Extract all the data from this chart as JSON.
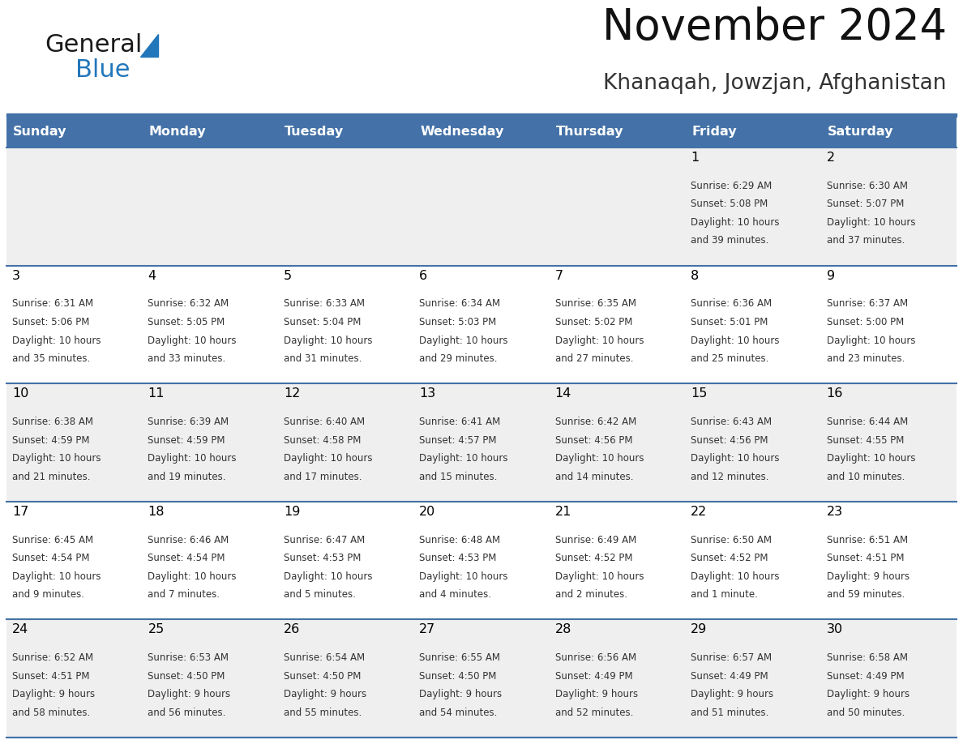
{
  "title": "November 2024",
  "subtitle": "Khanaqah, Jowzjan, Afghanistan",
  "header_bg": "#4472a8",
  "header_text": "#ffffff",
  "day_names": [
    "Sunday",
    "Monday",
    "Tuesday",
    "Wednesday",
    "Thursday",
    "Friday",
    "Saturday"
  ],
  "row_bg_odd": "#efefef",
  "row_bg_even": "#ffffff",
  "cell_border_color": "#4472a8",
  "day_number_color": "#000000",
  "info_text_color": "#333333",
  "logo_color1": "#1a1a1a",
  "logo_color2": "#2277bb",
  "logo_triangle_color": "#2277bb",
  "calendar_data": [
    [
      null,
      null,
      null,
      null,
      null,
      {
        "day": 1,
        "sunrise": "6:29 AM",
        "sunset": "5:08 PM",
        "daylight": "10 hours and 39 minutes."
      },
      {
        "day": 2,
        "sunrise": "6:30 AM",
        "sunset": "5:07 PM",
        "daylight": "10 hours and 37 minutes."
      }
    ],
    [
      {
        "day": 3,
        "sunrise": "6:31 AM",
        "sunset": "5:06 PM",
        "daylight": "10 hours and 35 minutes."
      },
      {
        "day": 4,
        "sunrise": "6:32 AM",
        "sunset": "5:05 PM",
        "daylight": "10 hours and 33 minutes."
      },
      {
        "day": 5,
        "sunrise": "6:33 AM",
        "sunset": "5:04 PM",
        "daylight": "10 hours and 31 minutes."
      },
      {
        "day": 6,
        "sunrise": "6:34 AM",
        "sunset": "5:03 PM",
        "daylight": "10 hours and 29 minutes."
      },
      {
        "day": 7,
        "sunrise": "6:35 AM",
        "sunset": "5:02 PM",
        "daylight": "10 hours and 27 minutes."
      },
      {
        "day": 8,
        "sunrise": "6:36 AM",
        "sunset": "5:01 PM",
        "daylight": "10 hours and 25 minutes."
      },
      {
        "day": 9,
        "sunrise": "6:37 AM",
        "sunset": "5:00 PM",
        "daylight": "10 hours and 23 minutes."
      }
    ],
    [
      {
        "day": 10,
        "sunrise": "6:38 AM",
        "sunset": "4:59 PM",
        "daylight": "10 hours and 21 minutes."
      },
      {
        "day": 11,
        "sunrise": "6:39 AM",
        "sunset": "4:59 PM",
        "daylight": "10 hours and 19 minutes."
      },
      {
        "day": 12,
        "sunrise": "6:40 AM",
        "sunset": "4:58 PM",
        "daylight": "10 hours and 17 minutes."
      },
      {
        "day": 13,
        "sunrise": "6:41 AM",
        "sunset": "4:57 PM",
        "daylight": "10 hours and 15 minutes."
      },
      {
        "day": 14,
        "sunrise": "6:42 AM",
        "sunset": "4:56 PM",
        "daylight": "10 hours and 14 minutes."
      },
      {
        "day": 15,
        "sunrise": "6:43 AM",
        "sunset": "4:56 PM",
        "daylight": "10 hours and 12 minutes."
      },
      {
        "day": 16,
        "sunrise": "6:44 AM",
        "sunset": "4:55 PM",
        "daylight": "10 hours and 10 minutes."
      }
    ],
    [
      {
        "day": 17,
        "sunrise": "6:45 AM",
        "sunset": "4:54 PM",
        "daylight": "10 hours and 9 minutes."
      },
      {
        "day": 18,
        "sunrise": "6:46 AM",
        "sunset": "4:54 PM",
        "daylight": "10 hours and 7 minutes."
      },
      {
        "day": 19,
        "sunrise": "6:47 AM",
        "sunset": "4:53 PM",
        "daylight": "10 hours and 5 minutes."
      },
      {
        "day": 20,
        "sunrise": "6:48 AM",
        "sunset": "4:53 PM",
        "daylight": "10 hours and 4 minutes."
      },
      {
        "day": 21,
        "sunrise": "6:49 AM",
        "sunset": "4:52 PM",
        "daylight": "10 hours and 2 minutes."
      },
      {
        "day": 22,
        "sunrise": "6:50 AM",
        "sunset": "4:52 PM",
        "daylight": "10 hours and 1 minute."
      },
      {
        "day": 23,
        "sunrise": "6:51 AM",
        "sunset": "4:51 PM",
        "daylight": "9 hours and 59 minutes."
      }
    ],
    [
      {
        "day": 24,
        "sunrise": "6:52 AM",
        "sunset": "4:51 PM",
        "daylight": "9 hours and 58 minutes."
      },
      {
        "day": 25,
        "sunrise": "6:53 AM",
        "sunset": "4:50 PM",
        "daylight": "9 hours and 56 minutes."
      },
      {
        "day": 26,
        "sunrise": "6:54 AM",
        "sunset": "4:50 PM",
        "daylight": "9 hours and 55 minutes."
      },
      {
        "day": 27,
        "sunrise": "6:55 AM",
        "sunset": "4:50 PM",
        "daylight": "9 hours and 54 minutes."
      },
      {
        "day": 28,
        "sunrise": "6:56 AM",
        "sunset": "4:49 PM",
        "daylight": "9 hours and 52 minutes."
      },
      {
        "day": 29,
        "sunrise": "6:57 AM",
        "sunset": "4:49 PM",
        "daylight": "9 hours and 51 minutes."
      },
      {
        "day": 30,
        "sunrise": "6:58 AM",
        "sunset": "4:49 PM",
        "daylight": "9 hours and 50 minutes."
      }
    ]
  ]
}
